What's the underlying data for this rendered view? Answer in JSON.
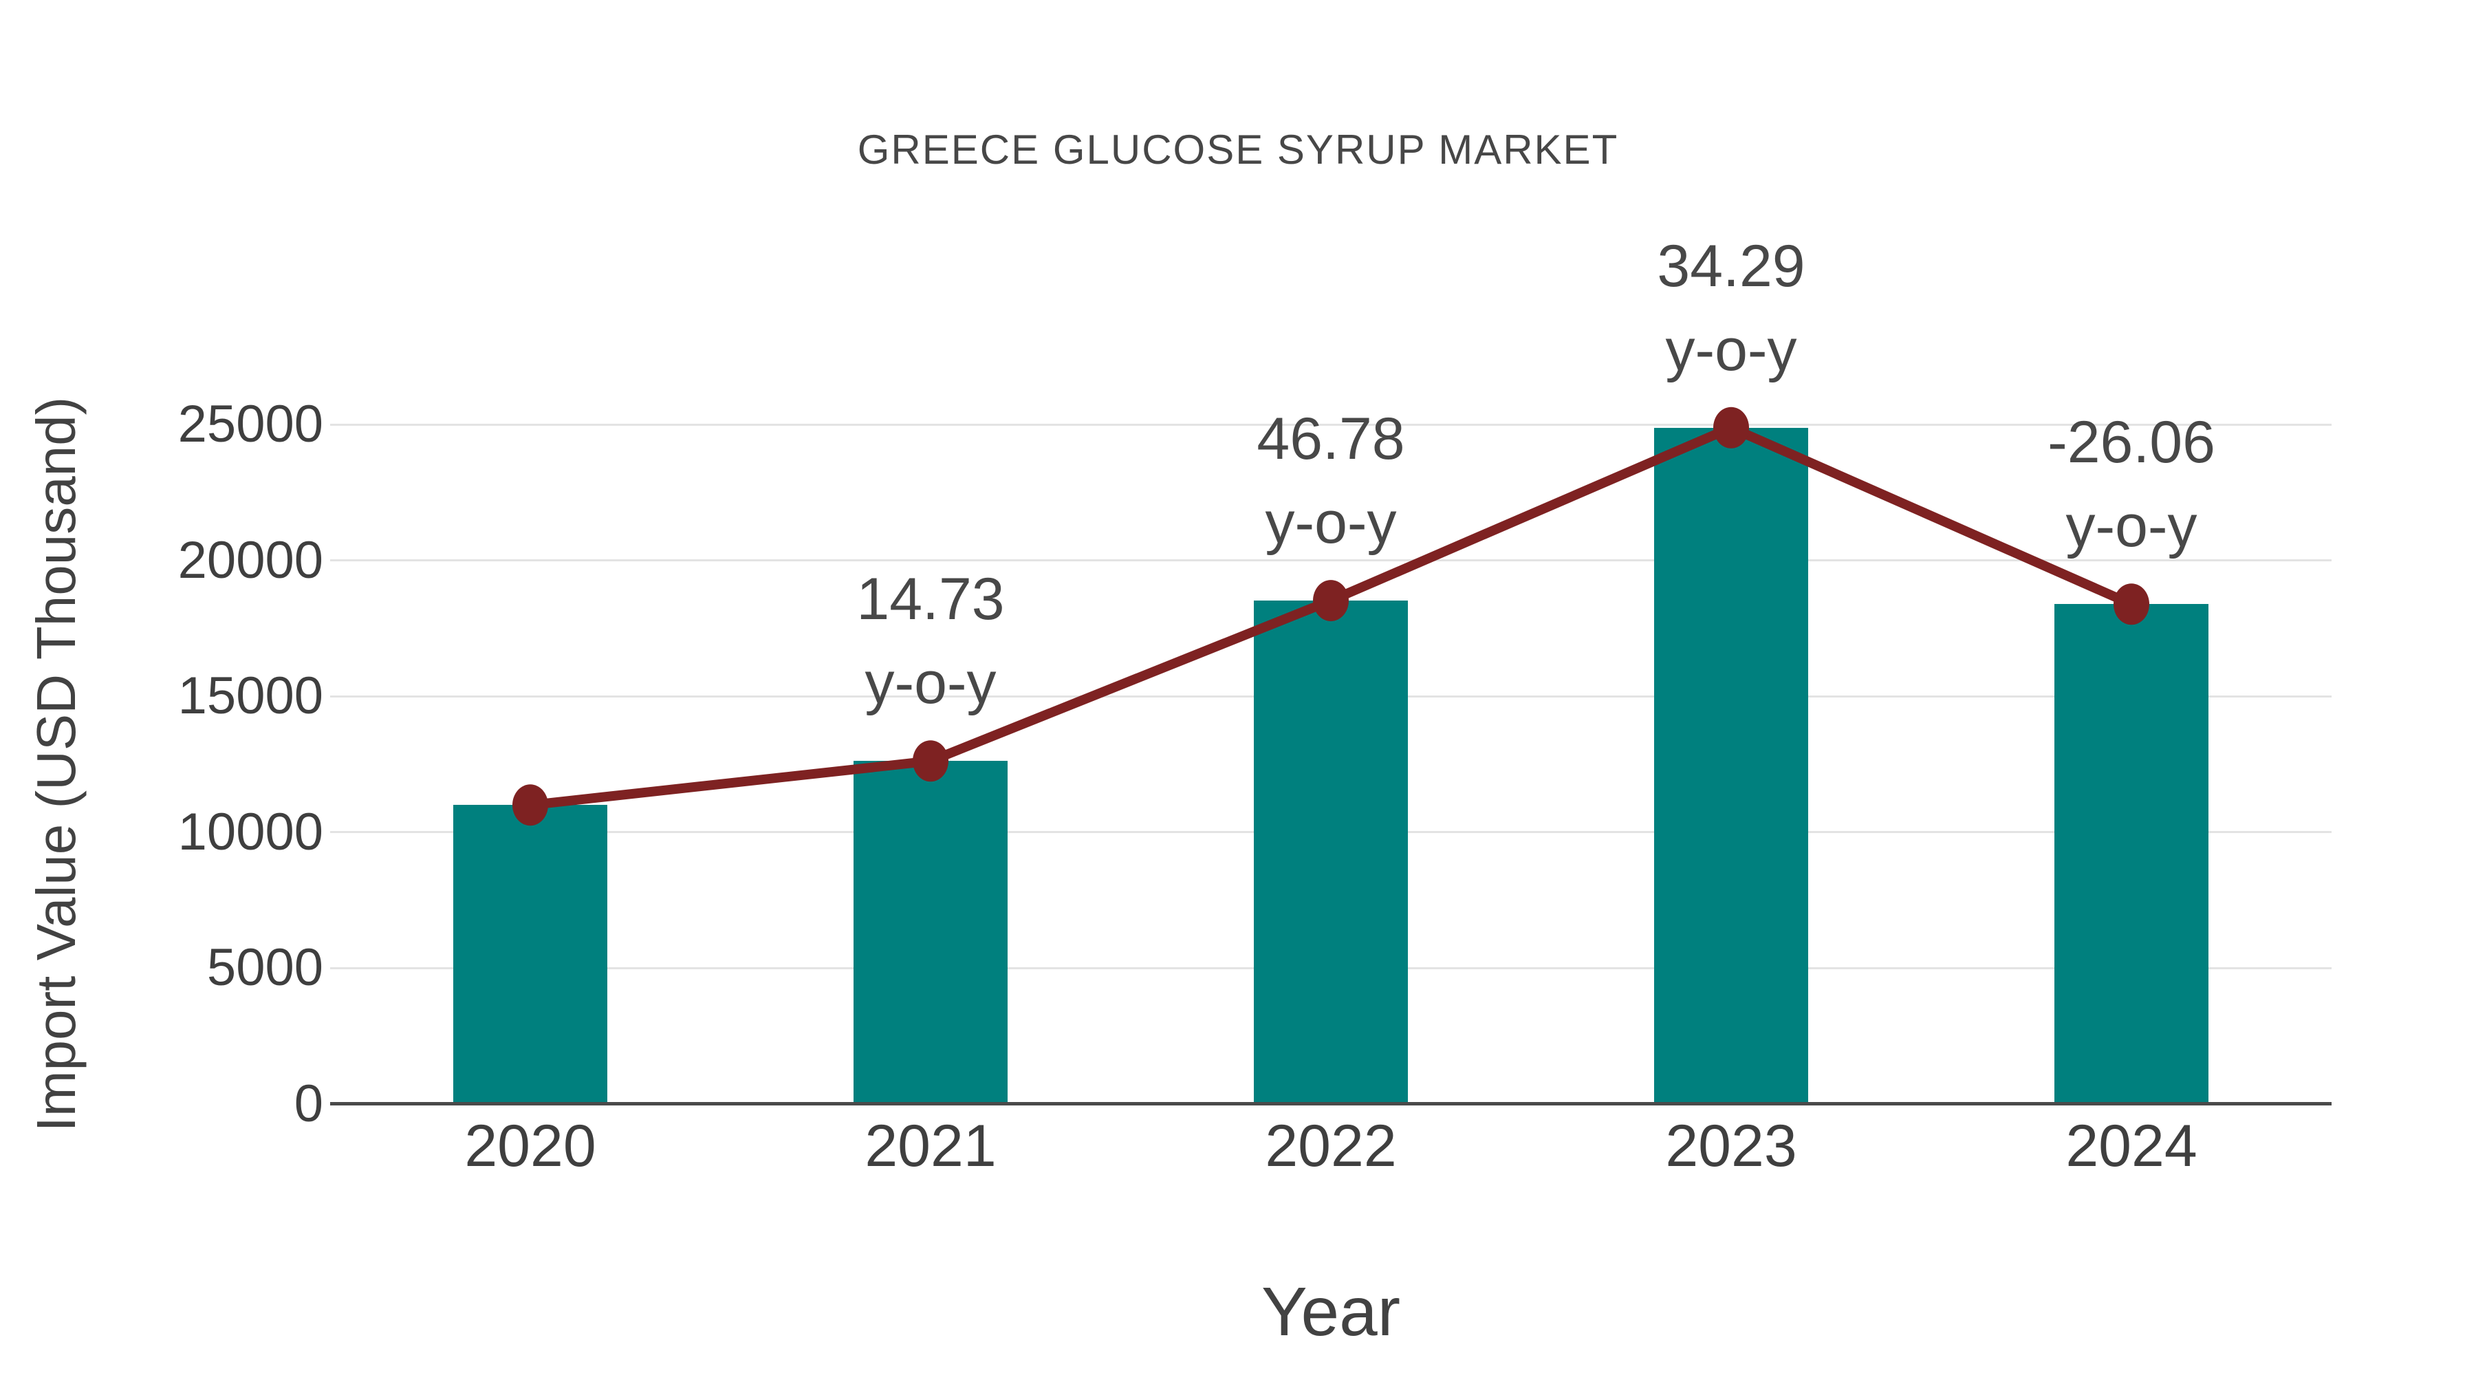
{
  "chart_data": {
    "type": "bar",
    "title": "GREECE GLUCOSE SYRUP MARKET",
    "xlabel": "Year",
    "ylabel": "Import Value (USD Thousand)",
    "categories": [
      "2020",
      "2021",
      "2022",
      "2023",
      "2024"
    ],
    "series": [
      {
        "name": "Import Value (USD Thousand)",
        "type": "bar",
        "values": [
          11000,
          12620,
          18520,
          24880,
          18390
        ]
      },
      {
        "name": "y-o-y change (%)",
        "type": "line",
        "values": [
          null,
          14.73,
          46.78,
          34.29,
          -26.06
        ]
      }
    ],
    "annotations": [
      {
        "category": "2021",
        "line1": "14.73",
        "line2": "y-o-y"
      },
      {
        "category": "2022",
        "line1": "46.78",
        "line2": "y-o-y"
      },
      {
        "category": "2023",
        "line1": "34.29",
        "line2": "y-o-y"
      },
      {
        "category": "2024",
        "line1": "-26.06",
        "line2": "y-o-y"
      }
    ],
    "ylim": [
      0,
      25000
    ],
    "yticks": [
      0,
      5000,
      10000,
      15000,
      20000,
      25000
    ],
    "grid": true,
    "legend": false,
    "colors": {
      "bar": "#00807e",
      "line": "#7e2222",
      "marker": "#7e2222",
      "gridline": "#e3e3e3",
      "axis": "#4a4a4a"
    }
  }
}
